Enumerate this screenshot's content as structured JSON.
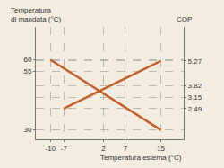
{
  "chart_data": {
    "type": "line",
    "ylabel": "Temperatura\ndi mandata (°C)",
    "y2label": "COP",
    "xlabel": "Temperatura esterna (°C)",
    "series": [
      {
        "x": [
          -10,
          15
        ],
        "values": [
          60,
          30
        ],
        "color": "#c0622f"
      },
      {
        "x": [
          -7,
          15
        ],
        "values": [
          2.49,
          5.27
        ],
        "color": "#c0622f",
        "axis": "y2"
      }
    ],
    "xlim": [
      -13.3,
      20.2
    ],
    "xticks": [
      -10,
      -7,
      2,
      7,
      15
    ],
    "ylim": [
      26,
      74
    ],
    "yticks": [
      30,
      55,
      60
    ],
    "y2lim": [
      0.7,
      7.25
    ],
    "y2ticks": [
      2.49,
      3.15,
      3.82,
      5.27
    ],
    "grid": true,
    "line_style": "solid"
  }
}
